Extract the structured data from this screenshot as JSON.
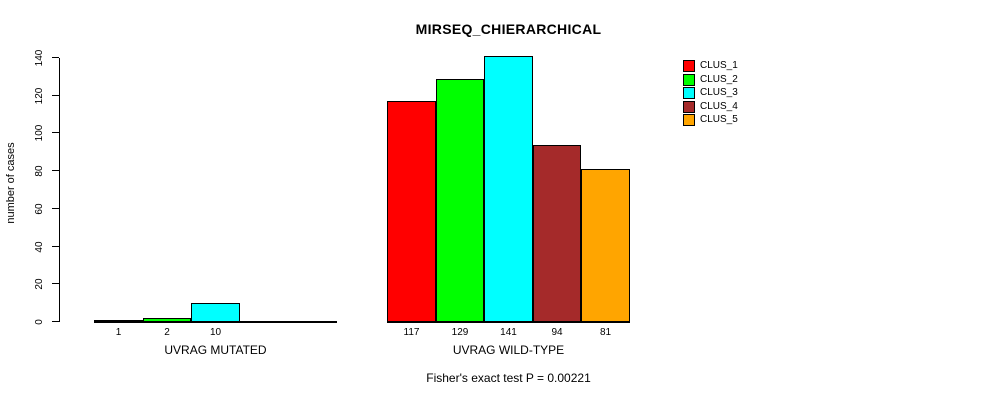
{
  "chart_data": {
    "type": "bar",
    "title": "MIRSEQ_CHIERARCHICAL",
    "ylabel": "number of cases",
    "xlabel": "",
    "ylim": [
      0,
      140
    ],
    "yticks": [
      0,
      20,
      40,
      60,
      80,
      100,
      120,
      140
    ],
    "grid": false,
    "legend": {
      "position": "top-right",
      "entries": [
        {
          "name": "CLUS_1",
          "color": "#FF0000"
        },
        {
          "name": "CLUS_2",
          "color": "#00FF00"
        },
        {
          "name": "CLUS_3",
          "color": "#00FFFF"
        },
        {
          "name": "CLUS_4",
          "color": "#A52A2A"
        },
        {
          "name": "CLUS_5",
          "color": "#FFA500"
        }
      ]
    },
    "groups": [
      {
        "label": "UVRAG MUTATED",
        "bars": [
          {
            "cluster": "CLUS_1",
            "value": 1,
            "value_label": "1",
            "color": "#FF0000"
          },
          {
            "cluster": "CLUS_2",
            "value": 2,
            "value_label": "2",
            "color": "#00FF00"
          },
          {
            "cluster": "CLUS_3",
            "value": 10,
            "value_label": "10",
            "color": "#00FFFF"
          },
          {
            "cluster": "CLUS_4",
            "value": 0,
            "value_label": "",
            "color": "#A52A2A"
          },
          {
            "cluster": "CLUS_5",
            "value": 0,
            "value_label": "",
            "color": "#FFA500"
          }
        ]
      },
      {
        "label": "UVRAG WILD-TYPE",
        "bars": [
          {
            "cluster": "CLUS_1",
            "value": 117,
            "value_label": "117",
            "color": "#FF0000"
          },
          {
            "cluster": "CLUS_2",
            "value": 129,
            "value_label": "129",
            "color": "#00FF00"
          },
          {
            "cluster": "CLUS_3",
            "value": 141,
            "value_label": "141",
            "color": "#00FFFF"
          },
          {
            "cluster": "CLUS_4",
            "value": 94,
            "value_label": "94",
            "color": "#A52A2A"
          },
          {
            "cluster": "CLUS_5",
            "value": 81,
            "value_label": "81",
            "color": "#FFA500"
          }
        ]
      }
    ],
    "footer": "Fisher's exact test P = 0.00221"
  }
}
